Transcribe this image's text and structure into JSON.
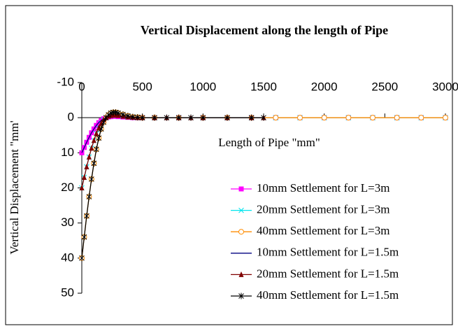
{
  "chart_data": {
    "type": "line",
    "title": "Vertical Displacement along the length of Pipe",
    "x_label": "Length of Pipe    \"mm\"",
    "y_label": "Vertical Displacement \"mm'",
    "xlim": [
      0,
      3000
    ],
    "xticks": [
      0,
      500,
      1000,
      1500,
      2000,
      2500,
      3000
    ],
    "ylim": [
      -10,
      50
    ],
    "yticks": [
      -10,
      0,
      10,
      20,
      30,
      40,
      50
    ],
    "y_reversed": true,
    "series": [
      {
        "name": "10mm Settlement for L=3m",
        "color": "#ff00ff",
        "marker": "square",
        "x": [
          0,
          20,
          40,
          60,
          80,
          100,
          120,
          140,
          160,
          180,
          200,
          220,
          240,
          260,
          280,
          300,
          340,
          380,
          420,
          460,
          500,
          600,
          800,
          1000,
          1200,
          1400,
          1600,
          1800,
          2000,
          2200,
          2400,
          2600,
          2800,
          3000
        ],
        "values": [
          10,
          8.5,
          7,
          5.6,
          4.3,
          3.2,
          2.2,
          1.4,
          0.8,
          0.3,
          0,
          -0.2,
          -0.3,
          -0.4,
          -0.4,
          -0.3,
          -0.2,
          -0.1,
          0,
          0,
          0,
          0,
          0,
          0,
          0,
          0,
          0,
          0,
          0,
          0,
          0,
          0,
          0,
          0
        ]
      },
      {
        "name": "20mm Settlement for L=3m",
        "color": "#00e5ee",
        "marker": "x",
        "x": [
          0,
          20,
          40,
          60,
          80,
          100,
          120,
          140,
          160,
          180,
          200,
          220,
          240,
          260,
          280,
          300,
          340,
          380,
          420,
          460,
          500,
          600,
          800,
          1000,
          1200,
          1400,
          1600,
          1800,
          2000,
          2200,
          2400,
          2600,
          2800,
          3000
        ],
        "values": [
          20,
          17,
          14,
          11.2,
          8.7,
          6.5,
          4.5,
          2.9,
          1.6,
          0.6,
          0,
          -0.4,
          -0.6,
          -0.7,
          -0.7,
          -0.6,
          -0.4,
          -0.2,
          -0.1,
          0,
          0,
          0,
          0,
          0,
          0,
          0,
          0,
          0,
          0,
          0,
          0,
          0,
          0,
          0
        ]
      },
      {
        "name": "40mm Settlement for L=3m",
        "color": "#ff8c00",
        "marker": "circle",
        "x": [
          0,
          20,
          40,
          60,
          80,
          100,
          120,
          140,
          160,
          180,
          200,
          220,
          240,
          260,
          280,
          300,
          340,
          380,
          420,
          460,
          500,
          600,
          800,
          1000,
          1200,
          1400,
          1600,
          1800,
          2000,
          2200,
          2400,
          2600,
          2800,
          3000
        ],
        "values": [
          40,
          34,
          28,
          22.5,
          17.5,
          13,
          9,
          5.8,
          3.2,
          1.3,
          0,
          -0.8,
          -1.3,
          -1.5,
          -1.5,
          -1.3,
          -0.9,
          -0.5,
          -0.2,
          -0.1,
          0,
          0,
          0,
          0,
          0,
          0,
          0,
          0,
          0,
          0,
          0,
          0,
          0,
          0
        ]
      },
      {
        "name": "10mm Settlement for L=1.5m",
        "color": "#000080",
        "marker": "none",
        "x": [
          0,
          20,
          40,
          60,
          80,
          100,
          120,
          140,
          160,
          180,
          200,
          220,
          240,
          260,
          280,
          300,
          340,
          380,
          420,
          460,
          500,
          600,
          700,
          800,
          900,
          1000,
          1200,
          1400,
          1500
        ],
        "values": [
          10,
          8.5,
          7,
          5.6,
          4.3,
          3.2,
          2.2,
          1.4,
          0.8,
          0.3,
          0,
          -0.2,
          -0.3,
          -0.4,
          -0.4,
          -0.3,
          -0.2,
          -0.1,
          0,
          0,
          0,
          0,
          0,
          0,
          0,
          0,
          0,
          0,
          0
        ]
      },
      {
        "name": "20mm Settlement for L=1.5m",
        "color": "#800000",
        "marker": "triangle",
        "x": [
          0,
          20,
          40,
          60,
          80,
          100,
          120,
          140,
          160,
          180,
          200,
          220,
          240,
          260,
          280,
          300,
          340,
          380,
          420,
          460,
          500,
          600,
          700,
          800,
          900,
          1000,
          1200,
          1400,
          1500
        ],
        "values": [
          20,
          17,
          14,
          11.2,
          8.7,
          6.5,
          4.5,
          2.9,
          1.6,
          0.6,
          0,
          -0.4,
          -0.6,
          -0.7,
          -0.7,
          -0.6,
          -0.4,
          -0.2,
          -0.1,
          0,
          0,
          0,
          0,
          0,
          0,
          0,
          0,
          0,
          0
        ]
      },
      {
        "name": "40mm Settlement for L=1.5m",
        "color": "#000000",
        "marker": "star",
        "x": [
          0,
          20,
          40,
          60,
          80,
          100,
          120,
          140,
          160,
          180,
          200,
          220,
          240,
          260,
          280,
          300,
          340,
          380,
          420,
          460,
          500,
          600,
          700,
          800,
          900,
          1000,
          1200,
          1400,
          1500
        ],
        "values": [
          40,
          34,
          28,
          22.5,
          17.5,
          13,
          9,
          5.8,
          3.2,
          1.3,
          0,
          -0.8,
          -1.3,
          -1.5,
          -1.5,
          -1.3,
          -0.9,
          -0.5,
          -0.2,
          -0.1,
          0,
          0,
          0,
          0,
          0,
          0,
          0,
          0,
          0
        ]
      }
    ]
  }
}
